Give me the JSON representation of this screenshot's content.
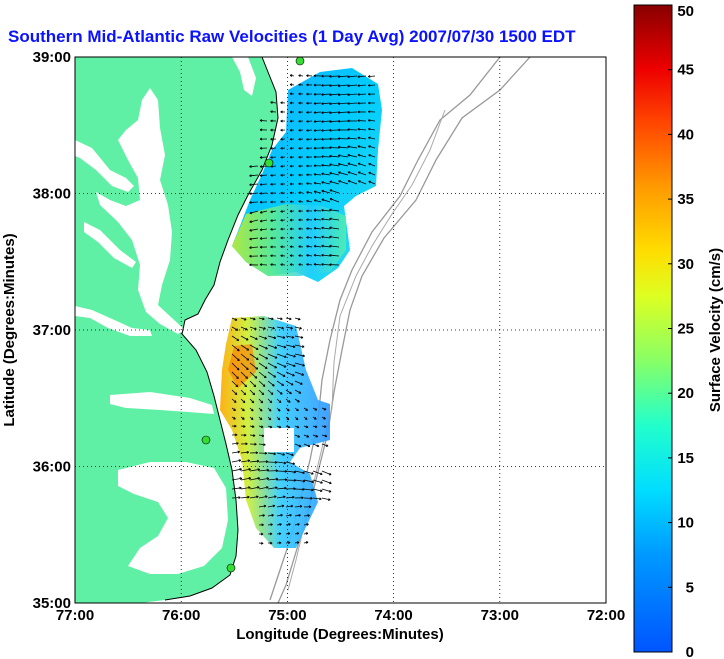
{
  "title": "Southern Mid-Atlantic Raw Velocities (1 Day Avg) 2007/07/30 1500 EDT",
  "colors": {
    "land": "#5ff0a5",
    "ocean": "#ffffff",
    "title": "#0b12ff",
    "station": "#33dd33"
  },
  "map": {
    "xlabel": "Longitude (Degrees:Minutes)",
    "ylabel": "Latitude (Degrees:Minutes)",
    "lon_range": [
      -77,
      -72
    ],
    "lat_range": [
      35,
      39
    ],
    "x_ticks": [
      "77:00",
      "76:00",
      "75:00",
      "74:00",
      "73:00",
      "72:00"
    ],
    "y_ticks": [
      "35:00",
      "36:00",
      "37:00",
      "38:00",
      "39:00"
    ],
    "grid": "dotted",
    "station_markers": 4
  },
  "colorbar": {
    "label": "Surface Velocity (cm/s)",
    "min": 0,
    "max": 50,
    "ticks": [
      "0",
      "5",
      "10",
      "15",
      "20",
      "25",
      "30",
      "35",
      "40",
      "45",
      "50"
    ],
    "colormap": "jet"
  }
}
